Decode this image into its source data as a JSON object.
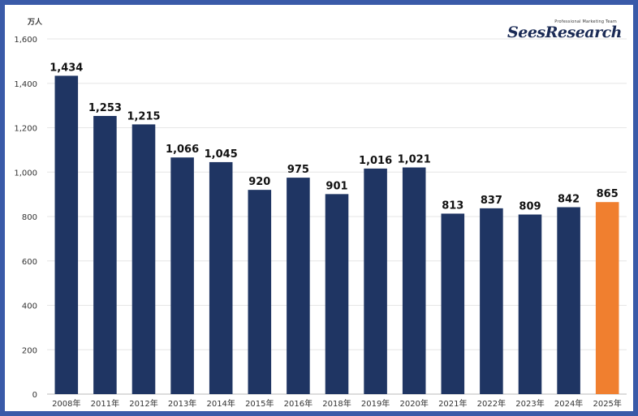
{
  "logo": {
    "tagline": "Professional Marketing Team",
    "name": "SeesResearch"
  },
  "chart_data": {
    "type": "bar",
    "unit_label": "万人",
    "categories": [
      "2008年",
      "2011年",
      "2012年",
      "2013年",
      "2014年",
      "2015年",
      "2016年",
      "2018年",
      "2019年",
      "2020年",
      "2021年",
      "2022年",
      "2023年",
      "2024年",
      "2025年"
    ],
    "values": [
      1434,
      1253,
      1215,
      1066,
      1045,
      920,
      975,
      901,
      1016,
      1021,
      813,
      837,
      809,
      842,
      865
    ],
    "data_labels": [
      "1,434",
      "1,253",
      "1,215",
      "1,066",
      "1,045",
      "920",
      "975",
      "901",
      "1,016",
      "1,021",
      "813",
      "837",
      "809",
      "842",
      "865"
    ],
    "ylim": [
      0,
      1600
    ],
    "yticks": [
      0,
      200,
      400,
      600,
      800,
      1000,
      1200,
      1400,
      1600
    ],
    "ytick_labels": [
      "0",
      "200",
      "400",
      "600",
      "800",
      "1,000",
      "1,200",
      "1,400",
      "1,600"
    ],
    "grid": true,
    "colors": {
      "bar": "#1f3563",
      "highlight": "#f07f2f",
      "grid": "#e6e6e6"
    },
    "highlight_index": 14
  }
}
